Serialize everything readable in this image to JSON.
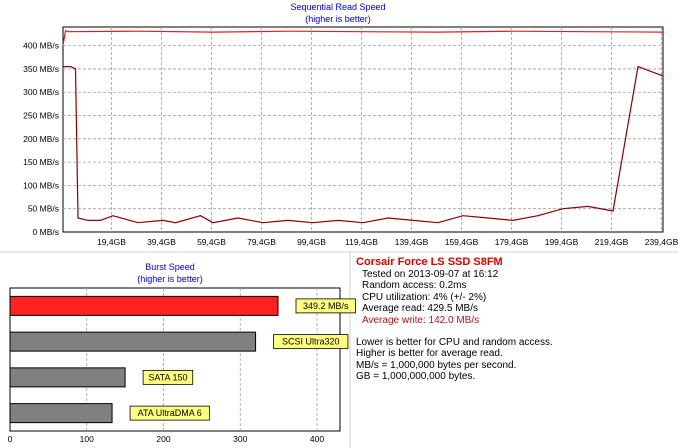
{
  "colors": {
    "read_line": "#8b0000",
    "write_line": "#e51c1c",
    "grid": "#a0a0a0",
    "title": "#0000cc",
    "burst_highlight": "#ff2020",
    "bar_gray": "#808080",
    "label_bg": "#ffff80"
  },
  "info": {
    "drive_name": "Corsair Force LS SSD S8FM",
    "tested_on": "Tested on 2013-09-07 at 16:12",
    "random_access": "Random access: 0.2ms",
    "cpu_utilization": "CPU utilization: 4% (+/- 2%)",
    "average_read": "Average read: 429.5 MB/s",
    "average_write": "Average write: 142.0 MB/s",
    "notes": [
      "Lower is better for CPU and random access.",
      "Higher is better for average read.",
      "MB/s = 1,000,000 bytes per second.",
      "GB = 1,000,000,000 bytes."
    ]
  },
  "chart_data": [
    {
      "type": "line",
      "title": "Sequential Read Speed",
      "subtitle": "(higher is better)",
      "x_tick_labels": [
        "19,4GB",
        "39,4GB",
        "59,4GB",
        "79,4GB",
        "99,4GB",
        "119,4GB",
        "139,4GB",
        "159,4GB",
        "179,4GB",
        "199,4GB",
        "219,4GB",
        "239,4GB"
      ],
      "x_ticks": [
        19.4,
        39.4,
        59.4,
        79.4,
        99.4,
        119.4,
        139.4,
        159.4,
        179.4,
        199.4,
        219.4,
        239.4
      ],
      "y_tick_labels": [
        "0 MB/s",
        "50 MB/s",
        "100 MB/s",
        "150 MB/s",
        "200 MB/s",
        "250 MB/s",
        "300 MB/s",
        "350 MB/s",
        "400 MB/s"
      ],
      "y_ticks": [
        0,
        50,
        100,
        150,
        200,
        250,
        300,
        350,
        400
      ],
      "xlim": [
        0,
        240
      ],
      "ylim": [
        0,
        440
      ],
      "grid": true,
      "series": [
        {
          "x": [
            0,
            1,
            2,
            30,
            60,
            90,
            120,
            150,
            180,
            210,
            240
          ],
          "y": [
            400,
            432,
            430,
            431,
            429,
            431,
            430,
            429,
            431,
            430,
            429
          ]
        },
        {
          "x": [
            0,
            3,
            5,
            6,
            10,
            15,
            20,
            30,
            40,
            45,
            55,
            60,
            70,
            80,
            90,
            100,
            110,
            120,
            130,
            140,
            150,
            160,
            170,
            180,
            190,
            200,
            210,
            220,
            230,
            240
          ],
          "y": [
            355,
            355,
            350,
            30,
            25,
            25,
            35,
            20,
            25,
            20,
            35,
            20,
            30,
            20,
            25,
            20,
            25,
            20,
            30,
            25,
            20,
            35,
            30,
            25,
            35,
            50,
            55,
            45,
            355,
            335
          ]
        }
      ]
    },
    {
      "type": "bar",
      "orientation": "horizontal",
      "title": "Burst Speed",
      "subtitle": "(higher is better)",
      "categories": [
        "349.2 MB/s",
        "SCSI Ultra320",
        "SATA 150",
        "ATA UltraDMA 6"
      ],
      "values": [
        349.2,
        320,
        150,
        133
      ],
      "x_ticks": [
        0,
        100,
        200,
        300,
        400
      ],
      "xlim": [
        0,
        430
      ],
      "grid": true
    }
  ]
}
